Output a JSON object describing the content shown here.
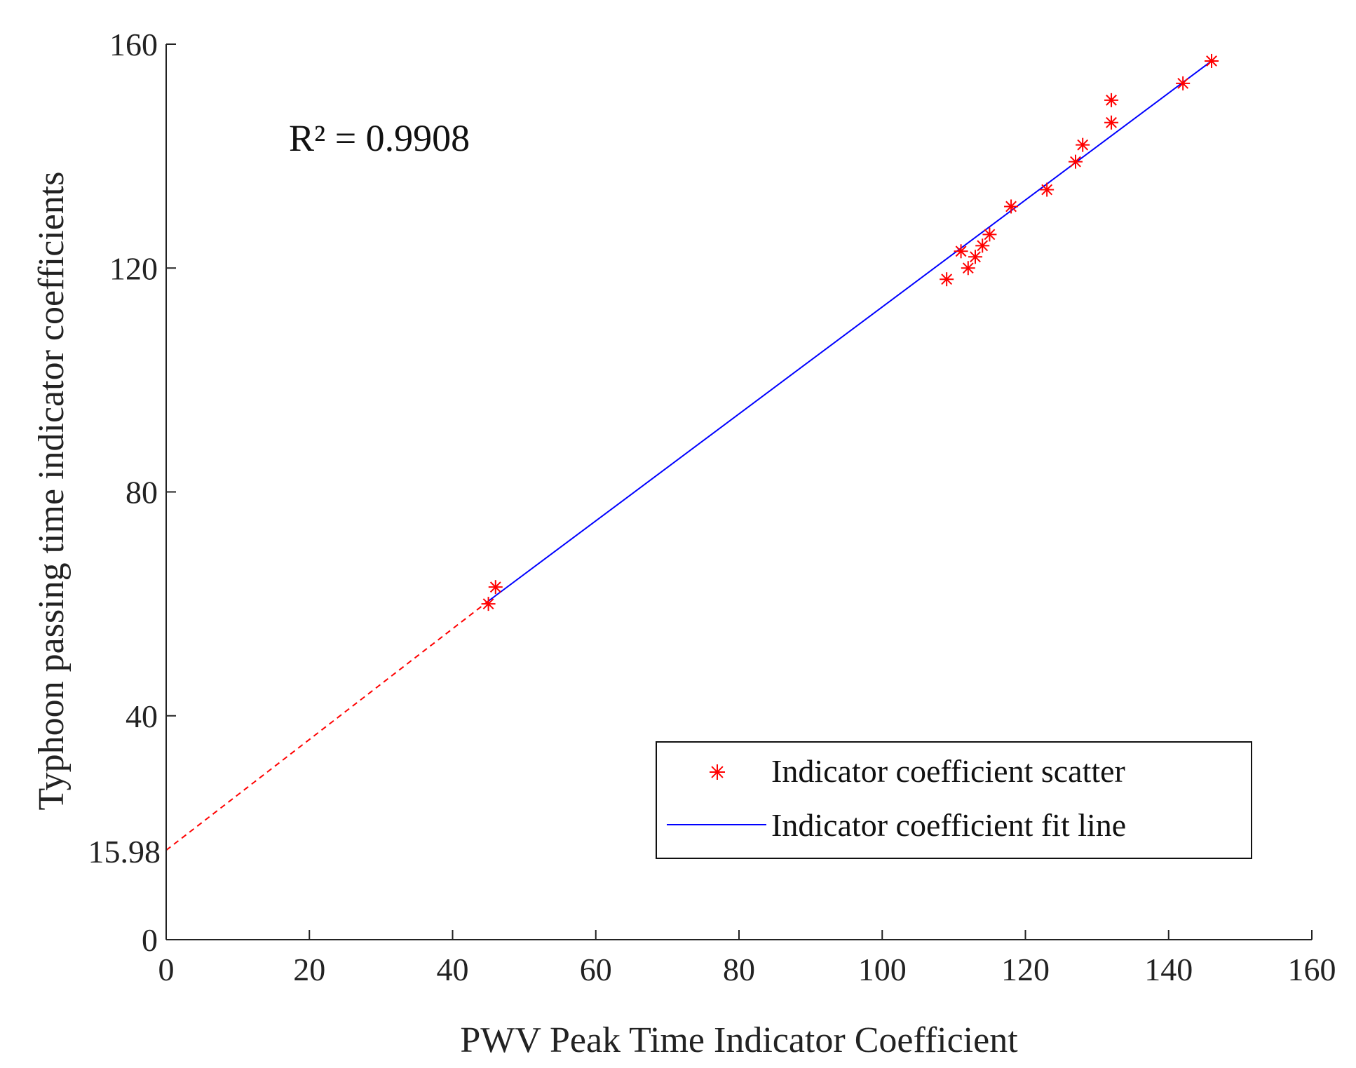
{
  "chart_data": {
    "type": "scatter",
    "title": "",
    "xlabel": "PWV Peak Time Indicator Coefficient",
    "ylabel": "Typhoon passing time indicator coefficients",
    "xlim": [
      0,
      160
    ],
    "ylim": [
      0,
      160
    ],
    "xticks": [
      "0",
      "20",
      "40",
      "60",
      "80",
      "100",
      "120",
      "140",
      "160"
    ],
    "yticks": [
      "0",
      "40",
      "80",
      "120",
      "160"
    ],
    "extra_ytick": "15.98",
    "annotation": "R² = 0.9908",
    "grid": false,
    "legend_position": "bottom-right",
    "colors": {
      "scatter": "#ff0000",
      "fit": "#0000ff",
      "extrapolation": "#ff0000",
      "axis": "#222222"
    },
    "series": [
      {
        "name": "Indicator coefficient scatter",
        "kind": "scatter",
        "marker": "asterisk",
        "x": [
          45,
          46,
          109,
          111,
          112,
          113,
          114,
          115,
          118,
          123,
          127,
          128,
          132,
          132,
          142,
          146
        ],
        "y": [
          60,
          63,
          118,
          123,
          120,
          122,
          124,
          126,
          131,
          134,
          139,
          142,
          146,
          150,
          153,
          157
        ]
      },
      {
        "name": "Indicator coefficient fit line",
        "kind": "line",
        "style": "solid",
        "x": [
          45,
          146
        ],
        "y": [
          60.5,
          157
        ]
      },
      {
        "name": "",
        "kind": "line",
        "style": "dashed",
        "x": [
          0,
          45
        ],
        "y": [
          15.98,
          60.5
        ]
      }
    ]
  }
}
